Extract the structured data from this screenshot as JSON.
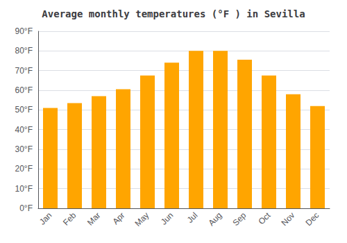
{
  "chart_data": {
    "type": "bar",
    "title": "Average monthly temperatures (°F ) in Sevilla",
    "categories": [
      "Jan",
      "Feb",
      "Mar",
      "Apr",
      "May",
      "Jun",
      "Jul",
      "Aug",
      "Sep",
      "Oct",
      "Nov",
      "Dec"
    ],
    "values": [
      51,
      53.5,
      57,
      60.5,
      67.5,
      74,
      80,
      80,
      75.5,
      67.5,
      58,
      52
    ],
    "color": "#FFA500",
    "ylim": [
      0,
      90
    ],
    "yticks": [
      {
        "value": 0,
        "label": "0°F"
      },
      {
        "value": 10,
        "label": "10°F"
      },
      {
        "value": 20,
        "label": "20°F"
      },
      {
        "value": 30,
        "label": "30°F"
      },
      {
        "value": 40,
        "label": "40°F"
      },
      {
        "value": 50,
        "label": "50°F"
      },
      {
        "value": 60,
        "label": "60°F"
      },
      {
        "value": 70,
        "label": "70°F"
      },
      {
        "value": 80,
        "label": "80°F"
      },
      {
        "value": 90,
        "label": "90°F"
      }
    ],
    "grid": true
  }
}
